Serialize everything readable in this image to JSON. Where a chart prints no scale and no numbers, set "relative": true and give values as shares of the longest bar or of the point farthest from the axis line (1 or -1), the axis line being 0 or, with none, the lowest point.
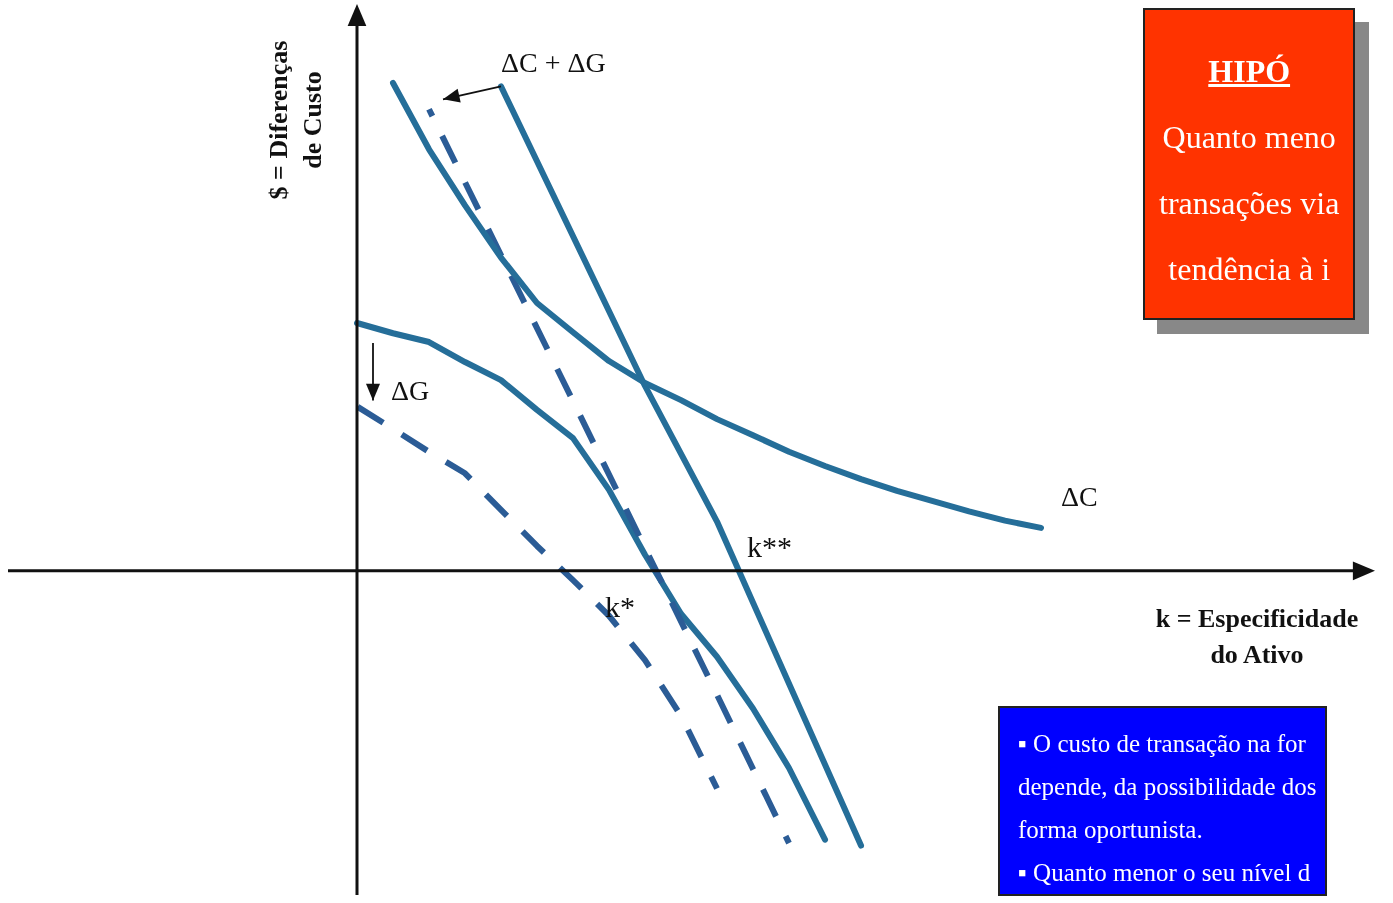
{
  "chart_data": {
    "type": "line",
    "relative": true,
    "xlabel": "k = Especificidade\ndo Ativo",
    "ylabel": "$ = Diferenças\nde Custo",
    "grid": false,
    "legend": false,
    "marker": "none",
    "categories": [
      null,
      null,
      null,
      null,
      null,
      null,
      null,
      null,
      null,
      null,
      null,
      null,
      null,
      null,
      null,
      null,
      null,
      null,
      null,
      null,
      null,
      null,
      null,
      null,
      null,
      null,
      null,
      null,
      null
    ],
    "series": [
      {
        "name": "ΔC",
        "color": "#256e99",
        "values": [
          null,
          1.0,
          0.864,
          0.749,
          0.642,
          0.549,
          0.489,
          0.43,
          0.385,
          0.35,
          0.311,
          0.278,
          0.244,
          0.215,
          0.188,
          0.164,
          0.143,
          0.122,
          0.103,
          0.088,
          null,
          null,
          null,
          null,
          null,
          null,
          null,
          null,
          null
        ]
      },
      {
        "name": "ΔC + ΔG",
        "color": "#256e99",
        "values": [
          null,
          null,
          null,
          null,
          0.993,
          null,
          null,
          null,
          0.379,
          null,
          0.101,
          null,
          null,
          null,
          -0.563,
          null,
          null,
          null,
          null,
          null,
          null,
          null,
          null,
          null,
          null,
          null,
          null,
          null,
          null
        ]
      },
      {
        "color": "#2b5c96",
        "line_style": "dashed",
        "values": [
          null,
          null,
          0.946,
          null,
          null,
          null,
          0.348,
          null,
          null,
          null,
          -0.254,
          null,
          -0.558,
          null,
          null,
          null,
          null,
          null,
          null,
          null,
          null,
          null,
          null,
          null,
          null,
          null,
          null,
          null,
          null
        ]
      },
      {
        "name": "ΔG",
        "color": "#256e99",
        "values": [
          0.508,
          0.487,
          0.469,
          0.428,
          0.391,
          0.33,
          0.272,
          0.166,
          0.033,
          -0.088,
          -0.176,
          -0.282,
          -0.404,
          -0.551,
          null,
          null,
          null,
          null,
          null,
          null,
          null,
          null,
          null,
          null,
          null,
          null,
          null,
          null,
          null
        ]
      },
      {
        "color": "#2b5c96",
        "line_style": "dashed",
        "values": [
          0.337,
          0.291,
          0.244,
          0.2,
          0.125,
          0.051,
          -0.019,
          -0.092,
          -0.183,
          -0.297,
          -0.446,
          null,
          null,
          null,
          null,
          null,
          null,
          null,
          null,
          null,
          null,
          null,
          null,
          null,
          null,
          null,
          null,
          null,
          null
        ]
      }
    ],
    "annotations": [
      "k**",
      "k*",
      "HIPÓ\nQuanto meno\ntransações via\ntendência à i",
      "▪ O custo de transação na for\ndepende, da possibilidade dos\nforma oportunista.\n▪ Quanto menor o seu nível d"
    ]
  }
}
